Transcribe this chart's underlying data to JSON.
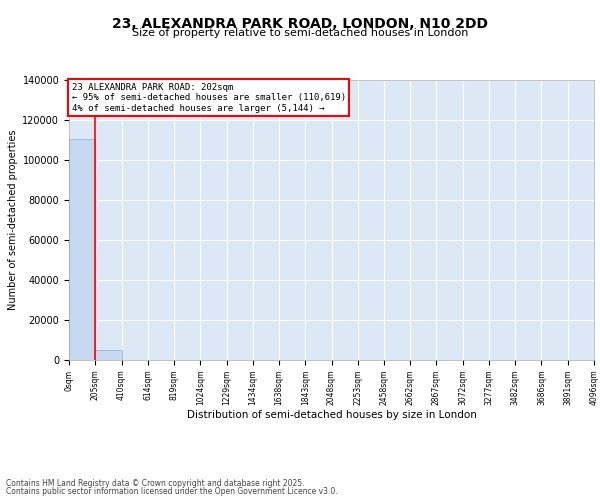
{
  "title": "23, ALEXANDRA PARK ROAD, LONDON, N10 2DD",
  "subtitle": "Size of property relative to semi-detached houses in London",
  "xlabel": "Distribution of semi-detached houses by size in London",
  "ylabel": "Number of semi-detached properties",
  "annotation_text_line1": "23 ALEXANDRA PARK ROAD: 202sqm",
  "annotation_text_line2": "← 95% of semi-detached houses are smaller (110,619)",
  "annotation_text_line3": "4% of semi-detached houses are larger (5,144) →",
  "bins": [
    0,
    205,
    410,
    614,
    819,
    1024,
    1229,
    1434,
    1638,
    1843,
    2048,
    2253,
    2458,
    2662,
    2867,
    3072,
    3277,
    3482,
    3686,
    3891,
    4096
  ],
  "bin_labels": [
    "0sqm",
    "205sqm",
    "410sqm",
    "614sqm",
    "819sqm",
    "1024sqm",
    "1229sqm",
    "1434sqm",
    "1638sqm",
    "1843sqm",
    "2048sqm",
    "2253sqm",
    "2458sqm",
    "2662sqm",
    "2867sqm",
    "3072sqm",
    "3277sqm",
    "3482sqm",
    "3686sqm",
    "3891sqm",
    "4096sqm"
  ],
  "bar_heights": [
    110619,
    5144,
    0,
    0,
    0,
    0,
    0,
    0,
    0,
    0,
    0,
    0,
    0,
    0,
    0,
    0,
    0,
    0,
    0,
    0
  ],
  "bar_color": "#c5d8f0",
  "bar_edge_color": "#8ab0d0",
  "red_line_x": 202,
  "ylim": [
    0,
    140000
  ],
  "yticks": [
    0,
    20000,
    40000,
    60000,
    80000,
    100000,
    120000,
    140000
  ],
  "background_color": "#dce8f5",
  "grid_color": "#ffffff",
  "figure_bg": "#ffffff",
  "title_fontsize": 10,
  "subtitle_fontsize": 8,
  "footer_line1": "Contains HM Land Registry data © Crown copyright and database right 2025.",
  "footer_line2": "Contains public sector information licensed under the Open Government Licence v3.0."
}
